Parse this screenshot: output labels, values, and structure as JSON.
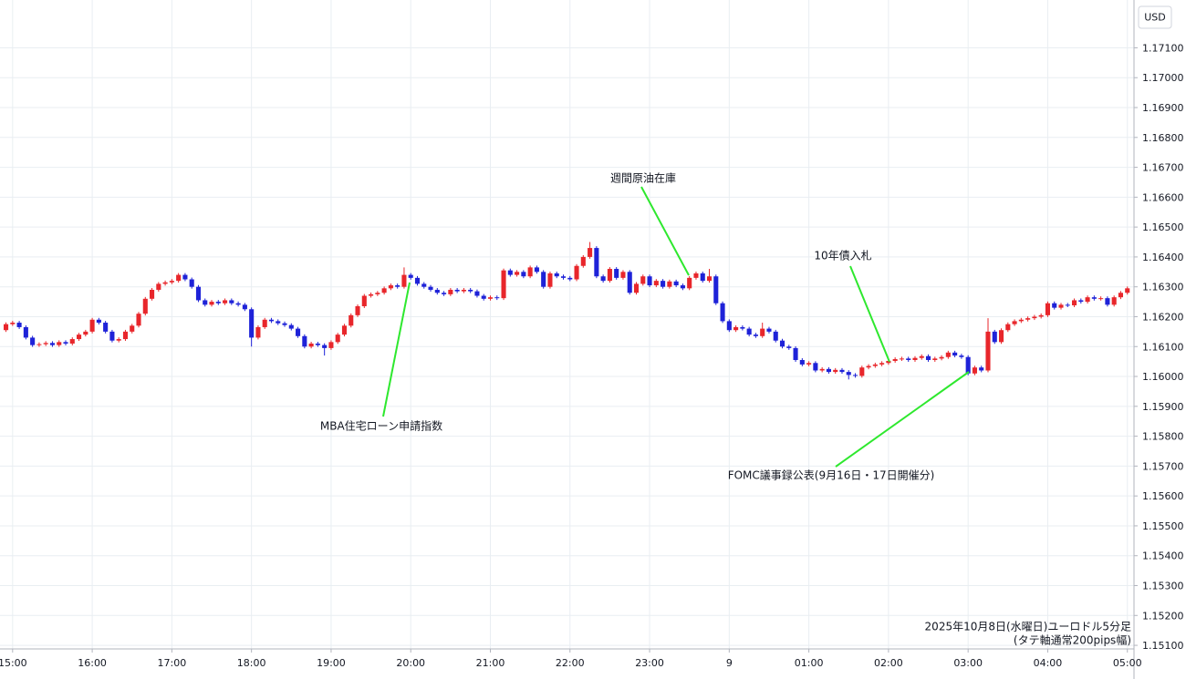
{
  "chart_data": {
    "type": "candlestick",
    "y_unit": "USD",
    "notes": [
      "2025年10月8日(水曜日)ユーロドル5分足",
      "(タテ軸通常200pips幅)"
    ],
    "annotations": [
      {
        "text": "週間原油在庫"
      },
      {
        "text": "MBA住宅ローン申請指数"
      },
      {
        "text": "10年債入札"
      },
      {
        "text": "FOMC議事録公表(9月16日・17日開催分)"
      }
    ],
    "up_color": "#e8262b",
    "down_color": "#1e22d8",
    "grid": true,
    "xlim": [
      -0.9,
      170
    ],
    "xticks": [
      {
        "value": 1,
        "label": "15:00"
      },
      {
        "value": 13,
        "label": "16:00"
      },
      {
        "value": 25,
        "label": "17:00"
      },
      {
        "value": 37,
        "label": "18:00"
      },
      {
        "value": 49,
        "label": "19:00"
      },
      {
        "value": 61,
        "label": "20:00"
      },
      {
        "value": 73,
        "label": "21:00"
      },
      {
        "value": 85,
        "label": "22:00"
      },
      {
        "value": 97,
        "label": "23:00"
      },
      {
        "value": 109,
        "label": "9"
      },
      {
        "value": 121,
        "label": "01:00"
      },
      {
        "value": 133,
        "label": "02:00"
      },
      {
        "value": 145,
        "label": "03:00"
      },
      {
        "value": 157,
        "label": "04:00"
      },
      {
        "value": 169,
        "label": "05:00"
      }
    ],
    "ylim": [
      1.15088,
      1.1726
    ],
    "yticks": [
      {
        "value": 1.151,
        "label": "1.15100"
      },
      {
        "value": 1.152,
        "label": "1.15200"
      },
      {
        "value": 1.153,
        "label": "1.15300"
      },
      {
        "value": 1.154,
        "label": "1.15400"
      },
      {
        "value": 1.155,
        "label": "1.15500"
      },
      {
        "value": 1.156,
        "label": "1.15600"
      },
      {
        "value": 1.157,
        "label": "1.15700"
      },
      {
        "value": 1.158,
        "label": "1.15800"
      },
      {
        "value": 1.159,
        "label": "1.15900"
      },
      {
        "value": 1.16,
        "label": "1.16000"
      },
      {
        "value": 1.161,
        "label": "1.16100"
      },
      {
        "value": 1.162,
        "label": "1.16200"
      },
      {
        "value": 1.163,
        "label": "1.16300"
      },
      {
        "value": 1.164,
        "label": "1.16400"
      },
      {
        "value": 1.165,
        "label": "1.16500"
      },
      {
        "value": 1.166,
        "label": "1.16600"
      },
      {
        "value": 1.167,
        "label": "1.16700"
      },
      {
        "value": 1.168,
        "label": "1.16800"
      },
      {
        "value": 1.169,
        "label": "1.16900"
      },
      {
        "value": 1.17,
        "label": "1.17000"
      },
      {
        "value": 1.171,
        "label": "1.17100"
      }
    ],
    "open": [
      1.16155,
      1.16175,
      1.1618,
      1.16165,
      1.1613,
      1.16105,
      1.16108,
      1.16112,
      1.16105,
      1.16115,
      1.1611,
      1.16125,
      1.1614,
      1.1615,
      1.1619,
      1.1618,
      1.1615,
      1.1612,
      1.16125,
      1.1615,
      1.1617,
      1.1621,
      1.1626,
      1.1629,
      1.1631,
      1.16315,
      1.1632,
      1.1634,
      1.16325,
      1.163,
      1.16255,
      1.1624,
      1.1625,
      1.16245,
      1.16255,
      1.16245,
      1.1624,
      1.16225,
      1.1613,
      1.16165,
      1.1619,
      1.16185,
      1.16178,
      1.16172,
      1.1616,
      1.16135,
      1.161,
      1.1611,
      1.16105,
      1.16095,
      1.16115,
      1.1614,
      1.1617,
      1.16205,
      1.16235,
      1.1627,
      1.16275,
      1.1628,
      1.16295,
      1.16305,
      1.163,
      1.1634,
      1.1633,
      1.1631,
      1.163,
      1.1629,
      1.1628,
      1.16275,
      1.1629,
      1.16285,
      1.1629,
      1.16285,
      1.1627,
      1.1626,
      1.16265,
      1.16262,
      1.16355,
      1.1634,
      1.1635,
      1.16335,
      1.16365,
      1.1635,
      1.163,
      1.16345,
      1.16335,
      1.1633,
      1.16325,
      1.1637,
      1.164,
      1.1643,
      1.16335,
      1.1632,
      1.1636,
      1.1633,
      1.1635,
      1.1628,
      1.1631,
      1.16335,
      1.16305,
      1.1632,
      1.163,
      1.16318,
      1.16305,
      1.16295,
      1.1633,
      1.16345,
      1.1632,
      1.16335,
      1.16245,
      1.16185,
      1.16155,
      1.16165,
      1.1616,
      1.1614,
      1.16135,
      1.1616,
      1.1615,
      1.1612,
      1.161,
      1.16095,
      1.16055,
      1.1604,
      1.16045,
      1.1602,
      1.16025,
      1.16015,
      1.16022,
      1.16015,
      1.16005,
      1.16002,
      1.1603,
      1.16035,
      1.1604,
      1.16045,
      1.16052,
      1.16058,
      1.1606,
      1.16055,
      1.16062,
      1.16068,
      1.16055,
      1.1606,
      1.16065,
      1.1608,
      1.1607,
      1.16065,
      1.1601,
      1.1603,
      1.1602,
      1.1615,
      1.16115,
      1.16155,
      1.16175,
      1.16185,
      1.1619,
      1.16195,
      1.162,
      1.16205,
      1.16245,
      1.1623,
      1.1624,
      1.16238,
      1.16255,
      1.1625,
      1.16265,
      1.1626,
      1.16262,
      1.1624,
      1.16265,
      1.1628
    ],
    "high": [
      1.16181,
      1.16186,
      1.16186,
      1.16171,
      1.16136,
      1.16114,
      1.16118,
      1.16118,
      1.16121,
      1.16121,
      1.16131,
      1.16146,
      1.16156,
      1.16196,
      1.16196,
      1.16186,
      1.16156,
      1.16131,
      1.16156,
      1.16176,
      1.16216,
      1.16266,
      1.16296,
      1.16316,
      1.16321,
      1.16326,
      1.16346,
      1.16346,
      1.16331,
      1.16306,
      1.16261,
      1.16256,
      1.16256,
      1.16261,
      1.16261,
      1.16251,
      1.16246,
      1.16231,
      1.16171,
      1.16196,
      1.16196,
      1.16191,
      1.16184,
      1.16178,
      1.16166,
      1.16141,
      1.16116,
      1.16116,
      1.16111,
      1.16121,
      1.16146,
      1.16176,
      1.16211,
      1.16241,
      1.16276,
      1.16281,
      1.16286,
      1.16301,
      1.16311,
      1.16311,
      1.16365,
      1.16346,
      1.16336,
      1.16316,
      1.16306,
      1.16296,
      1.16286,
      1.16296,
      1.16296,
      1.16296,
      1.16296,
      1.16291,
      1.16276,
      1.16271,
      1.16271,
      1.16361,
      1.16361,
      1.16356,
      1.16356,
      1.16371,
      1.16371,
      1.16356,
      1.16351,
      1.16351,
      1.16341,
      1.16336,
      1.16376,
      1.16406,
      1.1645,
      1.16436,
      1.16341,
      1.16366,
      1.16366,
      1.16356,
      1.16356,
      1.16316,
      1.16341,
      1.16341,
      1.16326,
      1.16326,
      1.16324,
      1.16324,
      1.16311,
      1.16336,
      1.16351,
      1.16351,
      1.1636,
      1.16341,
      1.16251,
      1.16191,
      1.16171,
      1.16171,
      1.16166,
      1.16146,
      1.1618,
      1.16166,
      1.16156,
      1.16126,
      1.16106,
      1.16101,
      1.16061,
      1.16051,
      1.16051,
      1.16031,
      1.16031,
      1.16028,
      1.16028,
      1.16021,
      1.16011,
      1.16036,
      1.16041,
      1.16046,
      1.16051,
      1.16058,
      1.16064,
      1.16066,
      1.16066,
      1.16068,
      1.16074,
      1.16074,
      1.16066,
      1.16071,
      1.16086,
      1.16086,
      1.16076,
      1.16071,
      1.16036,
      1.16036,
      1.16195,
      1.16156,
      1.16161,
      1.16181,
      1.16191,
      1.16196,
      1.16201,
      1.16206,
      1.16211,
      1.16251,
      1.16251,
      1.16246,
      1.16246,
      1.16261,
      1.16261,
      1.16271,
      1.16271,
      1.16268,
      1.16268,
      1.16271,
      1.16286,
      1.16301
    ],
    "low": [
      1.16149,
      1.16169,
      1.16159,
      1.16124,
      1.16099,
      1.16099,
      1.16102,
      1.16099,
      1.16099,
      1.16104,
      1.16104,
      1.16119,
      1.16134,
      1.16144,
      1.16174,
      1.16144,
      1.16114,
      1.16114,
      1.16119,
      1.16144,
      1.16164,
      1.16204,
      1.16254,
      1.16284,
      1.16304,
      1.16309,
      1.16314,
      1.16319,
      1.16294,
      1.16249,
      1.16234,
      1.16234,
      1.16239,
      1.16239,
      1.16239,
      1.16234,
      1.16219,
      1.161,
      1.16124,
      1.16159,
      1.16179,
      1.16172,
      1.16166,
      1.16154,
      1.16129,
      1.16094,
      1.16094,
      1.16099,
      1.1607,
      1.16089,
      1.16109,
      1.16134,
      1.16164,
      1.16199,
      1.16229,
      1.16264,
      1.16269,
      1.16274,
      1.16289,
      1.16294,
      1.16294,
      1.16324,
      1.16304,
      1.16294,
      1.16284,
      1.16274,
      1.16269,
      1.16269,
      1.16279,
      1.16279,
      1.16279,
      1.16264,
      1.16254,
      1.16254,
      1.16256,
      1.16256,
      1.16334,
      1.16334,
      1.16329,
      1.16329,
      1.16344,
      1.16294,
      1.16294,
      1.16329,
      1.16324,
      1.16319,
      1.16319,
      1.16364,
      1.16394,
      1.16329,
      1.16314,
      1.16314,
      1.16324,
      1.16324,
      1.16274,
      1.16274,
      1.16304,
      1.16299,
      1.16299,
      1.16294,
      1.16294,
      1.16299,
      1.16289,
      1.16289,
      1.16324,
      1.16314,
      1.16314,
      1.16239,
      1.16179,
      1.16149,
      1.16149,
      1.16154,
      1.16134,
      1.16129,
      1.16129,
      1.16144,
      1.16114,
      1.16094,
      1.16089,
      1.16049,
      1.16034,
      1.16034,
      1.16014,
      1.16014,
      1.16009,
      1.16009,
      1.16009,
      1.1599,
      1.15996,
      1.15996,
      1.16024,
      1.16029,
      1.16034,
      1.16039,
      1.16046,
      1.16052,
      1.16049,
      1.16049,
      1.16056,
      1.16049,
      1.16049,
      1.16054,
      1.16059,
      1.16064,
      1.16059,
      1.16004,
      1.16004,
      1.16014,
      1.16014,
      1.16109,
      1.16109,
      1.16149,
      1.16169,
      1.16179,
      1.16184,
      1.16189,
      1.16194,
      1.16199,
      1.16224,
      1.16224,
      1.16232,
      1.16232,
      1.16244,
      1.16244,
      1.16254,
      1.16254,
      1.16234,
      1.16234,
      1.16259,
      1.16274
    ],
    "close": [
      1.16175,
      1.1618,
      1.16165,
      1.1613,
      1.16105,
      1.16108,
      1.16112,
      1.16105,
      1.16115,
      1.1611,
      1.16125,
      1.1614,
      1.1615,
      1.1619,
      1.1618,
      1.1615,
      1.1612,
      1.16125,
      1.1615,
      1.1617,
      1.1621,
      1.1626,
      1.1629,
      1.1631,
      1.16315,
      1.1632,
      1.1634,
      1.16325,
      1.163,
      1.16255,
      1.1624,
      1.1625,
      1.16245,
      1.16255,
      1.16245,
      1.1624,
      1.16225,
      1.1613,
      1.16165,
      1.1619,
      1.16185,
      1.16178,
      1.16172,
      1.1616,
      1.16135,
      1.161,
      1.1611,
      1.16105,
      1.16095,
      1.16115,
      1.1614,
      1.1617,
      1.16205,
      1.16235,
      1.1627,
      1.16275,
      1.1628,
      1.16295,
      1.16305,
      1.163,
      1.1634,
      1.1633,
      1.1631,
      1.163,
      1.1629,
      1.1628,
      1.16275,
      1.1629,
      1.16285,
      1.1629,
      1.16285,
      1.1627,
      1.1626,
      1.16265,
      1.16262,
      1.16355,
      1.1634,
      1.1635,
      1.16335,
      1.16365,
      1.1635,
      1.163,
      1.16345,
      1.16335,
      1.1633,
      1.16325,
      1.1637,
      1.164,
      1.1643,
      1.16335,
      1.1632,
      1.1636,
      1.1633,
      1.1635,
      1.1628,
      1.1631,
      1.16335,
      1.16305,
      1.1632,
      1.163,
      1.16318,
      1.16305,
      1.16295,
      1.1633,
      1.16345,
      1.1632,
      1.16335,
      1.16245,
      1.16185,
      1.16155,
      1.16165,
      1.1616,
      1.1614,
      1.16135,
      1.1616,
      1.1615,
      1.1612,
      1.161,
      1.16095,
      1.16055,
      1.1604,
      1.16045,
      1.1602,
      1.16025,
      1.16015,
      1.16022,
      1.16015,
      1.16005,
      1.16002,
      1.1603,
      1.16035,
      1.1604,
      1.16045,
      1.16052,
      1.16058,
      1.1606,
      1.16055,
      1.16062,
      1.16068,
      1.16055,
      1.1606,
      1.16065,
      1.1608,
      1.1607,
      1.16065,
      1.1601,
      1.1603,
      1.1602,
      1.1615,
      1.16115,
      1.16155,
      1.16175,
      1.16185,
      1.1619,
      1.16195,
      1.162,
      1.16205,
      1.16245,
      1.1623,
      1.1624,
      1.16238,
      1.16255,
      1.1625,
      1.16265,
      1.1626,
      1.16262,
      1.1624,
      1.16265,
      1.1628,
      1.16295
    ]
  }
}
